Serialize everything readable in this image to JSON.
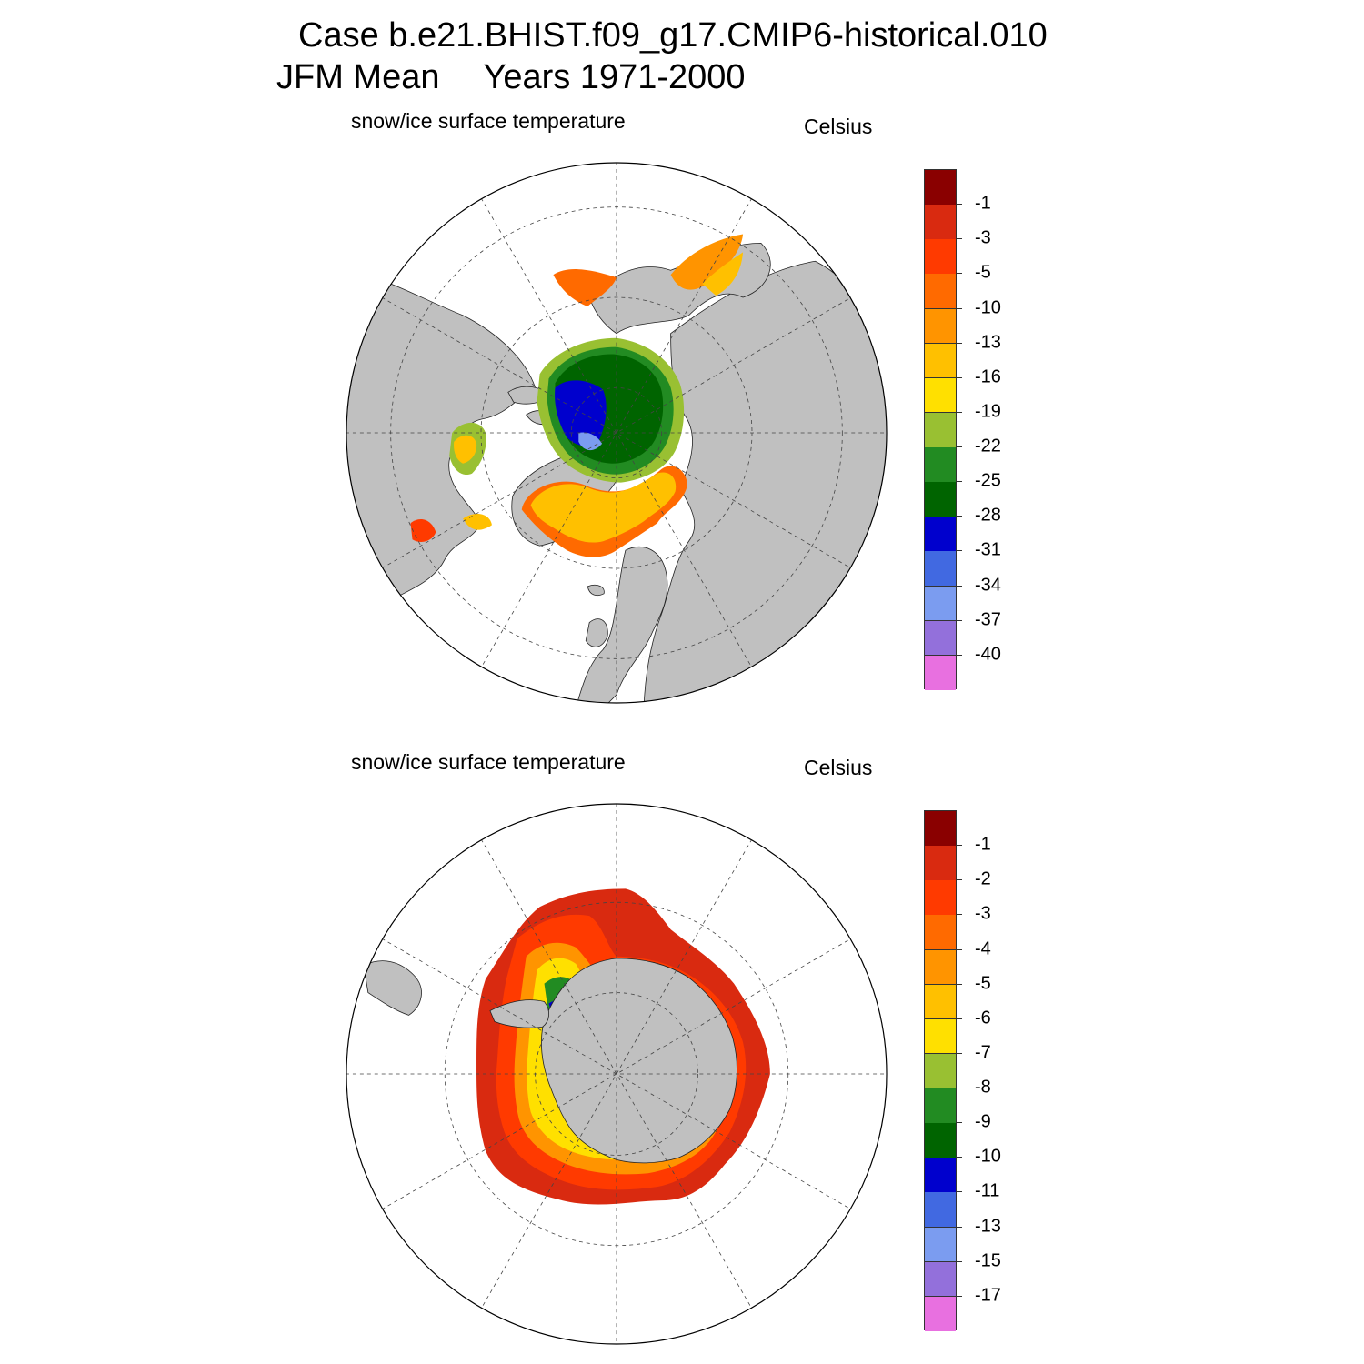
{
  "figure": {
    "title_line1": "Case b.e21.BHIST.f09_g17.CMIP6-historical.010",
    "title_mean": "JFM Mean",
    "title_years": "Years 1971-2000"
  },
  "panels": [
    {
      "id": "north",
      "hemisphere": "Northern Hemisphere",
      "variable_label": "snow/ice surface temperature",
      "units_label": "Celsius",
      "colorbar": {
        "labels": [
          "-1",
          "-3",
          "-5",
          "-10",
          "-13",
          "-16",
          "-19",
          "-22",
          "-25",
          "-28",
          "-31",
          "-34",
          "-37",
          "-40"
        ],
        "colors": [
          "#8a0000",
          "#d92a10",
          "#ff3a00",
          "#ff6a00",
          "#ff9400",
          "#ffc000",
          "#ffe000",
          "#99c032",
          "#228b22",
          "#006400",
          "#0000cd",
          "#4169e1",
          "#7b9cf0",
          "#9370db",
          "#e870e0"
        ]
      }
    },
    {
      "id": "south",
      "hemisphere": "Southern Hemisphere",
      "variable_label": "snow/ice surface temperature",
      "units_label": "Celsius",
      "colorbar": {
        "labels": [
          "-1",
          "-2",
          "-3",
          "-4",
          "-5",
          "-6",
          "-7",
          "-8",
          "-9",
          "-10",
          "-11",
          "-13",
          "-15",
          "-17"
        ],
        "colors": [
          "#8a0000",
          "#d92a10",
          "#ff3a00",
          "#ff6a00",
          "#ff9400",
          "#ffc000",
          "#ffe000",
          "#99c032",
          "#228b22",
          "#006400",
          "#0000cd",
          "#4169e1",
          "#7b9cf0",
          "#9370db",
          "#e870e0"
        ]
      }
    }
  ],
  "colors": {
    "land": "#c0c0c0",
    "ocean": "#ffffff",
    "grid": "#444444"
  }
}
